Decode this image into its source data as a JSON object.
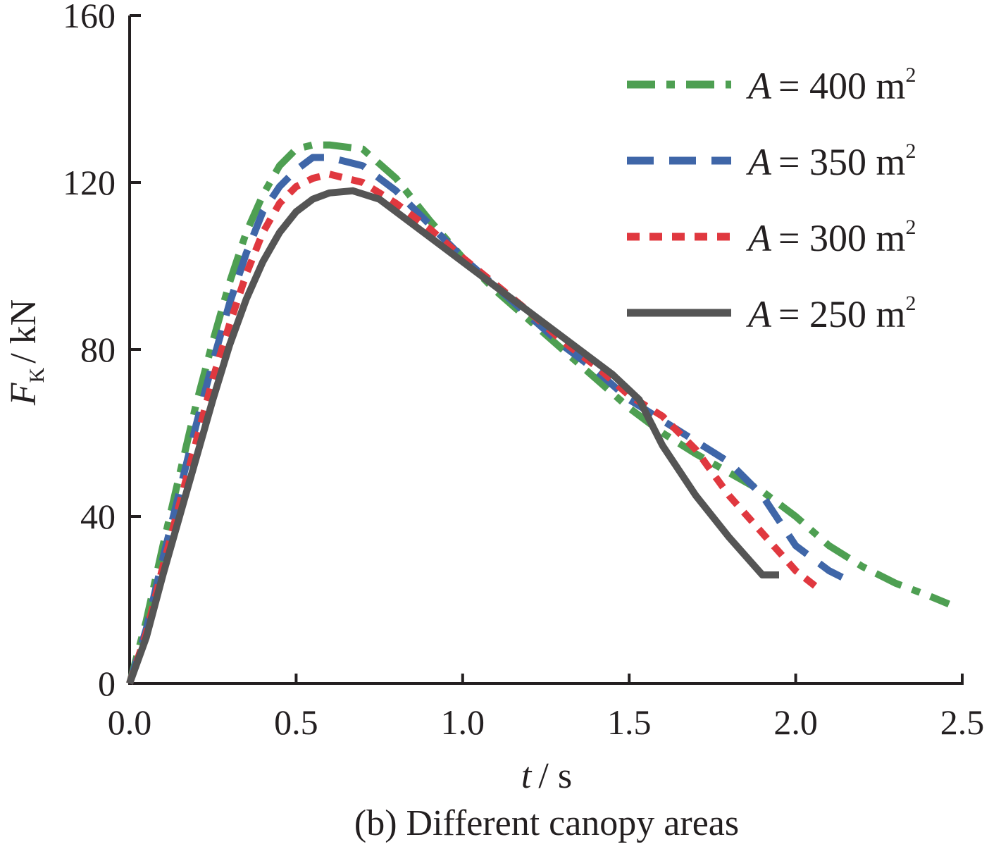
{
  "chart_data": {
    "type": "line",
    "title": "",
    "caption": "(b) Different canopy areas",
    "xlabel": {
      "var": "t",
      "unit": "/ s"
    },
    "ylabel": {
      "var": "F",
      "sub": "K",
      "unit": "/ kN"
    },
    "xlim": [
      0,
      2.5
    ],
    "ylim": [
      0,
      160
    ],
    "xticks": [
      0,
      0.5,
      1.0,
      1.5,
      2.0,
      2.5
    ],
    "xtick_labels": [
      "0.0",
      "0.5",
      "1.0",
      "1.5",
      "2.0",
      "2.5"
    ],
    "yticks": [
      0,
      40,
      80,
      120,
      160
    ],
    "ytick_labels": [
      "0",
      "40",
      "80",
      "120",
      "160"
    ],
    "legend_position": "top-right",
    "series": [
      {
        "name": "A = 400 m2",
        "legend_var": "A",
        "legend_eq": "= 400 m",
        "legend_sup": "2",
        "color": "#4e9f52",
        "style": "dash-dot",
        "points": [
          [
            0,
            0
          ],
          [
            0.05,
            15
          ],
          [
            0.1,
            33
          ],
          [
            0.15,
            50
          ],
          [
            0.2,
            67
          ],
          [
            0.25,
            82
          ],
          [
            0.3,
            96
          ],
          [
            0.35,
            108
          ],
          [
            0.4,
            117
          ],
          [
            0.45,
            124
          ],
          [
            0.5,
            128
          ],
          [
            0.55,
            129
          ],
          [
            0.6,
            129
          ],
          [
            0.7,
            128
          ],
          [
            0.8,
            121
          ],
          [
            0.9,
            111
          ],
          [
            1.0,
            102
          ],
          [
            1.1,
            94
          ],
          [
            1.2,
            87
          ],
          [
            1.3,
            80
          ],
          [
            1.4,
            73
          ],
          [
            1.5,
            66
          ],
          [
            1.6,
            60
          ],
          [
            1.7,
            55
          ],
          [
            1.8,
            50.5
          ],
          [
            1.9,
            46
          ],
          [
            2.0,
            40
          ],
          [
            2.1,
            33
          ],
          [
            2.2,
            28
          ],
          [
            2.3,
            24
          ],
          [
            2.4,
            21
          ],
          [
            2.46,
            19
          ]
        ]
      },
      {
        "name": "A = 350 m2",
        "legend_var": "A",
        "legend_eq": "= 350 m",
        "legend_sup": "2",
        "color": "#3f66a8",
        "style": "dashed",
        "points": [
          [
            0,
            0
          ],
          [
            0.05,
            13
          ],
          [
            0.1,
            30
          ],
          [
            0.15,
            46
          ],
          [
            0.2,
            62
          ],
          [
            0.25,
            77
          ],
          [
            0.3,
            91
          ],
          [
            0.35,
            103
          ],
          [
            0.4,
            113
          ],
          [
            0.45,
            119
          ],
          [
            0.5,
            123
          ],
          [
            0.55,
            126
          ],
          [
            0.6,
            126
          ],
          [
            0.7,
            124
          ],
          [
            0.8,
            118
          ],
          [
            0.9,
            110
          ],
          [
            1.0,
            102
          ],
          [
            1.1,
            95
          ],
          [
            1.2,
            88
          ],
          [
            1.3,
            81
          ],
          [
            1.4,
            75
          ],
          [
            1.5,
            68
          ],
          [
            1.6,
            63
          ],
          [
            1.7,
            58
          ],
          [
            1.8,
            53
          ],
          [
            1.9,
            45
          ],
          [
            2.0,
            33
          ],
          [
            2.1,
            27
          ],
          [
            2.15,
            25
          ]
        ]
      },
      {
        "name": "A = 300 m2",
        "legend_var": "A",
        "legend_eq": "= 300 m",
        "legend_sup": "2",
        "color": "#e0383f",
        "style": "dotted",
        "points": [
          [
            0,
            0
          ],
          [
            0.05,
            12
          ],
          [
            0.1,
            28
          ],
          [
            0.15,
            43
          ],
          [
            0.2,
            58
          ],
          [
            0.25,
            73
          ],
          [
            0.3,
            86
          ],
          [
            0.35,
            98
          ],
          [
            0.4,
            108
          ],
          [
            0.45,
            115
          ],
          [
            0.5,
            119
          ],
          [
            0.55,
            121
          ],
          [
            0.6,
            122
          ],
          [
            0.7,
            120
          ],
          [
            0.8,
            115
          ],
          [
            0.9,
            109
          ],
          [
            1.0,
            102
          ],
          [
            1.1,
            95.5
          ],
          [
            1.2,
            89
          ],
          [
            1.3,
            82
          ],
          [
            1.4,
            76
          ],
          [
            1.5,
            69
          ],
          [
            1.6,
            64
          ],
          [
            1.7,
            56
          ],
          [
            1.8,
            45
          ],
          [
            1.9,
            36
          ],
          [
            2.0,
            27
          ],
          [
            2.08,
            22
          ]
        ]
      },
      {
        "name": "A = 250 m2",
        "legend_var": "A",
        "legend_eq": "= 250 m",
        "legend_sup": "2",
        "color": "#555555",
        "style": "solid",
        "points": [
          [
            0,
            0
          ],
          [
            0.05,
            11
          ],
          [
            0.1,
            26
          ],
          [
            0.15,
            40
          ],
          [
            0.2,
            54
          ],
          [
            0.25,
            68
          ],
          [
            0.3,
            81
          ],
          [
            0.35,
            92
          ],
          [
            0.4,
            101
          ],
          [
            0.45,
            108
          ],
          [
            0.5,
            113
          ],
          [
            0.55,
            116
          ],
          [
            0.6,
            117.5
          ],
          [
            0.67,
            118
          ],
          [
            0.75,
            116
          ],
          [
            0.85,
            110
          ],
          [
            0.95,
            104
          ],
          [
            1.05,
            98
          ],
          [
            1.15,
            92
          ],
          [
            1.25,
            86
          ],
          [
            1.35,
            80
          ],
          [
            1.45,
            74
          ],
          [
            1.53,
            68
          ],
          [
            1.6,
            57
          ],
          [
            1.7,
            45
          ],
          [
            1.8,
            35
          ],
          [
            1.9,
            26
          ],
          [
            1.95,
            26
          ]
        ]
      }
    ]
  }
}
